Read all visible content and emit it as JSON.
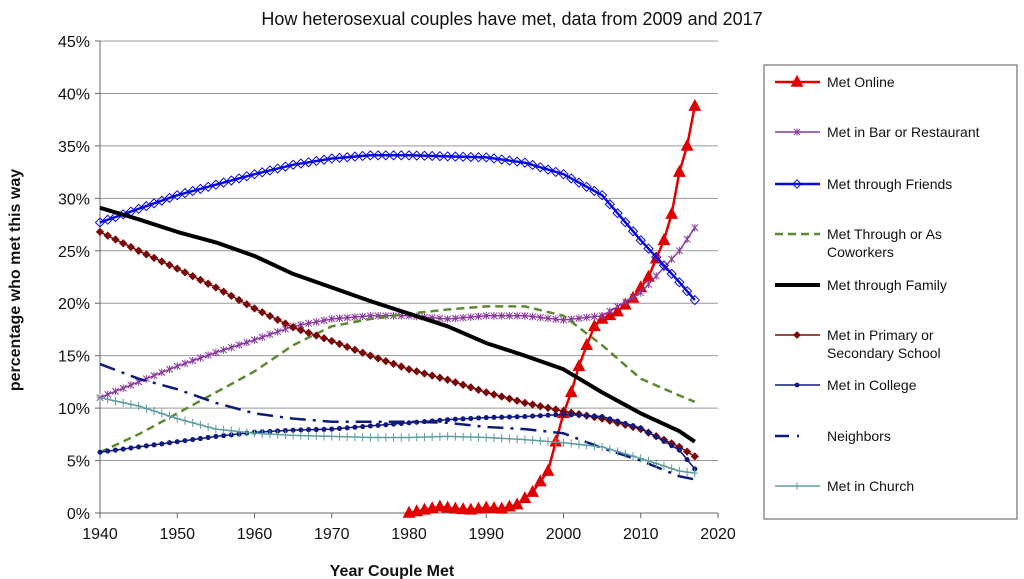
{
  "chart_data": {
    "type": "line",
    "title": "How heterosexual couples have met, data from 2009 and 2017",
    "xlabel": "Year Couple Met",
    "ylabel": "percentage who met this way",
    "xlim": [
      1940,
      2020
    ],
    "ylim": [
      0,
      45
    ],
    "xticks": [
      "1940",
      "1950",
      "1960",
      "1970",
      "1980",
      "1990",
      "2000",
      "2010",
      "2020"
    ],
    "yticks": [
      "0%",
      "5%",
      "10%",
      "15%",
      "20%",
      "25%",
      "30%",
      "35%",
      "40%",
      "45%"
    ],
    "grid": "horizontal",
    "legend": "right",
    "series": [
      {
        "name": "Met Online",
        "color": "#e00000",
        "marker": "triangle",
        "dash": "solid",
        "x": [
          1980,
          1982,
          1984,
          1986,
          1988,
          1990,
          1992,
          1994,
          1996,
          1998,
          1999,
          2000,
          2001,
          2002,
          2003,
          2004,
          2005,
          2007,
          2009,
          2011,
          2013,
          2014,
          2015,
          2016,
          2017
        ],
        "y": [
          0,
          0.3,
          0.6,
          0.4,
          0.3,
          0.5,
          0.4,
          0.8,
          2,
          4,
          6.8,
          9.5,
          11.5,
          14,
          16,
          17.8,
          18.5,
          19.2,
          20.5,
          22.5,
          26,
          28.5,
          32.5,
          35,
          38.8
        ]
      },
      {
        "name": "Met in Bar or Restaurant",
        "color": "#8a3a9e",
        "marker": "star",
        "dash": "solid",
        "x": [
          1940,
          1945,
          1950,
          1955,
          1960,
          1965,
          1970,
          1975,
          1980,
          1985,
          1990,
          1995,
          2000,
          2005,
          2010,
          2015,
          2017
        ],
        "y": [
          11,
          12.5,
          14,
          15.3,
          16.5,
          17.8,
          18.5,
          18.8,
          18.8,
          18.5,
          18.8,
          18.8,
          18.4,
          18.8,
          21,
          25,
          27.2
        ]
      },
      {
        "name": "Met through Friends",
        "color": "#0a0adc",
        "marker": "diamond-open",
        "dash": "solid",
        "x": [
          1940,
          1945,
          1950,
          1955,
          1960,
          1965,
          1970,
          1975,
          1980,
          1985,
          1990,
          1995,
          2000,
          2005,
          2010,
          2015,
          2017
        ],
        "y": [
          27.7,
          29,
          30.3,
          31.3,
          32.3,
          33.2,
          33.8,
          34.1,
          34.1,
          34,
          33.9,
          33.4,
          32.3,
          30.3,
          26,
          22,
          20.3
        ]
      },
      {
        "name": "Met Through or As Coworkers",
        "color": "#5a8a32",
        "marker": "none",
        "dash": "dashed",
        "x": [
          1940,
          1945,
          1950,
          1955,
          1960,
          1965,
          1970,
          1975,
          1980,
          1985,
          1990,
          1995,
          2000,
          2005,
          2010,
          2015,
          2017
        ],
        "y": [
          5.8,
          7.5,
          9.5,
          11.5,
          13.5,
          16,
          17.8,
          18.5,
          19,
          19.4,
          19.7,
          19.7,
          18.8,
          16,
          12.8,
          11.2,
          10.6
        ]
      },
      {
        "name": "Met through Family",
        "color": "#000000",
        "marker": "none",
        "dash": "solid",
        "x": [
          1940,
          1945,
          1950,
          1955,
          1960,
          1965,
          1970,
          1975,
          1980,
          1985,
          1990,
          1995,
          2000,
          2005,
          2010,
          2015,
          2017
        ],
        "y": [
          29.1,
          28,
          26.8,
          25.8,
          24.5,
          22.8,
          21.5,
          20.2,
          19,
          17.8,
          16.2,
          15,
          13.7,
          11.5,
          9.5,
          7.8,
          6.8
        ]
      },
      {
        "name": "Met in Primary or Secondary School",
        "color": "#7a0a0a",
        "marker": "diamond",
        "dash": "solid",
        "x": [
          1940,
          1945,
          1950,
          1955,
          1960,
          1965,
          1970,
          1975,
          1980,
          1985,
          1990,
          1995,
          2000,
          2005,
          2010,
          2015,
          2017
        ],
        "y": [
          26.8,
          25,
          23.3,
          21.5,
          19.5,
          17.7,
          16.4,
          15,
          13.7,
          12.7,
          11.5,
          10.5,
          9.7,
          9,
          8,
          6.3,
          5.4
        ]
      },
      {
        "name": "Met in College",
        "color": "#101a80",
        "marker": "dot",
        "dash": "solid",
        "x": [
          1940,
          1945,
          1950,
          1955,
          1960,
          1965,
          1970,
          1975,
          1980,
          1985,
          1990,
          1995,
          2000,
          2005,
          2010,
          2015,
          2017
        ],
        "y": [
          5.8,
          6.3,
          6.8,
          7.3,
          7.7,
          7.9,
          8,
          8.3,
          8.6,
          8.9,
          9.1,
          9.2,
          9.4,
          9.2,
          8.1,
          6,
          4.2
        ]
      },
      {
        "name": "Neighbors",
        "color": "#0c1a78",
        "marker": "none",
        "dash": "dashdot",
        "x": [
          1940,
          1945,
          1950,
          1955,
          1960,
          1965,
          1970,
          1975,
          1980,
          1985,
          1990,
          1995,
          2000,
          2005,
          2010,
          2015,
          2017
        ],
        "y": [
          14.2,
          12.8,
          11.8,
          10.5,
          9.5,
          9,
          8.7,
          8.7,
          8.7,
          8.6,
          8.2,
          8,
          7.6,
          6.2,
          5,
          3.5,
          3.2
        ]
      },
      {
        "name": "Met in Church",
        "color": "#5f9ea0",
        "marker": "plus",
        "dash": "solid",
        "x": [
          1940,
          1945,
          1950,
          1955,
          1960,
          1965,
          1970,
          1975,
          1980,
          1985,
          1990,
          1995,
          2000,
          2005,
          2010,
          2015,
          2017
        ],
        "y": [
          11,
          10.2,
          9,
          8,
          7.6,
          7.4,
          7.3,
          7.2,
          7.2,
          7.3,
          7.2,
          7,
          6.7,
          6.3,
          5.2,
          4,
          3.8
        ]
      }
    ],
    "legend_entries": [
      [
        "Met Online"
      ],
      [
        "Met in Bar or Restaurant"
      ],
      [
        "Met through Friends"
      ],
      [
        "Met Through or As",
        "Coworkers"
      ],
      [
        "Met through Family"
      ],
      [
        "Met in Primary or",
        "Secondary School"
      ],
      [
        "Met in College"
      ],
      [
        "Neighbors"
      ],
      [
        "Met in Church"
      ]
    ]
  }
}
